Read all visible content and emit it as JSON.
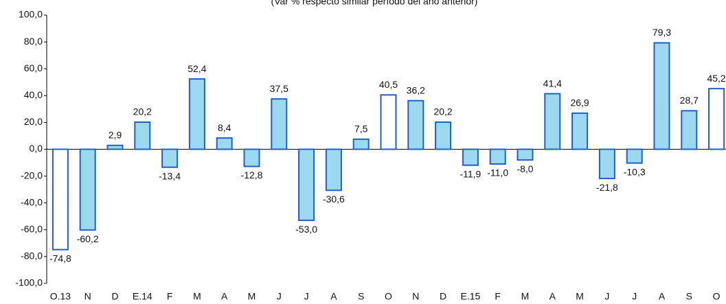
{
  "chart_data": {
    "type": "bar",
    "subtitle": "(Var % respecto similar período del año anterior)",
    "categories": [
      "O.13",
      "N",
      "D",
      "E.14",
      "F",
      "M",
      "A",
      "M",
      "J",
      "J",
      "A",
      "S",
      "O",
      "N",
      "D",
      "E.15",
      "F",
      "M",
      "A",
      "M",
      "J",
      "J",
      "A",
      "S",
      "O"
    ],
    "values": [
      -74.8,
      -60.2,
      2.9,
      20.2,
      -13.4,
      52.4,
      8.4,
      -12.8,
      37.5,
      -53.0,
      -30.6,
      7.5,
      40.5,
      36.2,
      20.2,
      -11.9,
      -11.0,
      -8.0,
      41.4,
      26.9,
      -21.8,
      -10.3,
      79.3,
      28.7,
      45.2
    ],
    "value_labels": [
      "-74,8",
      "-60,2",
      "2,9",
      "20,2",
      "-13,4",
      "52,4",
      "8,4",
      "-12,8",
      "37,5",
      "-53,0",
      "-30,6",
      "7,5",
      "40,5",
      "36,2",
      "20,2",
      "-11,9",
      "-11,0",
      "-8,0",
      "41,4",
      "26,9",
      "-21,8",
      "-10,3",
      "79,3",
      "28,7",
      "45,2"
    ],
    "colors": [
      "#ffffff",
      "#9dd9ee",
      "#9dd9ee",
      "#9dd9ee",
      "#9dd9ee",
      "#9dd9ee",
      "#9dd9ee",
      "#9dd9ee",
      "#9dd9ee",
      "#9dd9ee",
      "#9dd9ee",
      "#9dd9ee",
      "#ffffff",
      "#9dd9ee",
      "#9dd9ee",
      "#9dd9ee",
      "#9dd9ee",
      "#9dd9ee",
      "#9dd9ee",
      "#9dd9ee",
      "#9dd9ee",
      "#9dd9ee",
      "#9dd9ee",
      "#9dd9ee",
      "#ffffff"
    ],
    "edge_color": "#1f5fc8",
    "ylim": [
      -100,
      100
    ],
    "yticks": [
      {
        "value": -100,
        "label": "-100,0"
      },
      {
        "value": -80,
        "label": "-80,0"
      },
      {
        "value": -60,
        "label": "-60,0"
      },
      {
        "value": -40,
        "label": "-40,0"
      },
      {
        "value": -20,
        "label": "-20,0"
      },
      {
        "value": 0,
        "label": "0,0"
      },
      {
        "value": 20,
        "label": "20,0"
      },
      {
        "value": 40,
        "label": "40,0"
      },
      {
        "value": 60,
        "label": "60,0"
      },
      {
        "value": 80,
        "label": "80,0"
      },
      {
        "value": 100,
        "label": "100,0"
      }
    ]
  }
}
